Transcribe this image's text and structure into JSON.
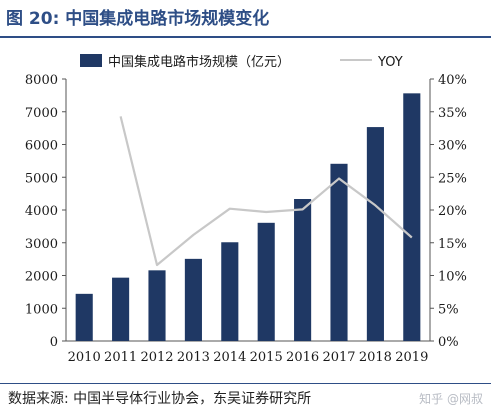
{
  "figure": {
    "title": "图 20:  中国集成电路市场规模变化",
    "source": "数据来源:  中国半导体行业协会，东吴证券研究所",
    "watermark": "知乎 @网叔"
  },
  "chart_data": {
    "type": "bar",
    "title": "",
    "xlabel": "",
    "ylabel": "",
    "categories": [
      "2010",
      "2011",
      "2012",
      "2013",
      "2014",
      "2015",
      "2016",
      "2017",
      "2018",
      "2019"
    ],
    "series": [
      {
        "name": "中国集成电路市场规模（亿元）",
        "type": "bar",
        "axis": "left",
        "color": "#1f3864",
        "values": [
          1440,
          1934,
          2158,
          2508,
          3015,
          3609,
          4336,
          5411,
          6532,
          7562
        ]
      },
      {
        "name": "YOY",
        "type": "line",
        "axis": "right",
        "color": "#c8c8c8",
        "values": [
          null,
          0.343,
          0.116,
          0.162,
          0.202,
          0.197,
          0.201,
          0.248,
          0.207,
          0.158
        ]
      }
    ],
    "y_left": {
      "lim": [
        0,
        8000
      ],
      "ticks": [
        0,
        1000,
        2000,
        3000,
        4000,
        5000,
        6000,
        7000,
        8000
      ],
      "tick_labels": [
        "0",
        "1000",
        "2000",
        "3000",
        "4000",
        "5000",
        "6000",
        "7000",
        "8000"
      ]
    },
    "y_right": {
      "lim": [
        0,
        0.4
      ],
      "ticks": [
        0,
        0.05,
        0.1,
        0.15,
        0.2,
        0.25,
        0.3,
        0.35,
        0.4
      ],
      "tick_labels": [
        "0%",
        "5%",
        "10%",
        "15%",
        "20%",
        "25%",
        "30%",
        "35%",
        "40%"
      ]
    },
    "grid": false,
    "legend_position": "top"
  }
}
